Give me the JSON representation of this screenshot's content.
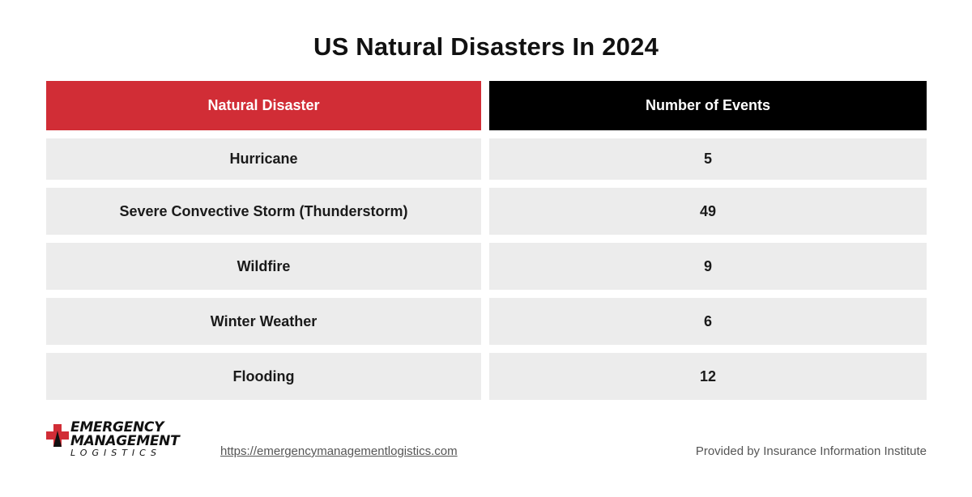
{
  "title": "US Natural Disasters In 2024",
  "chart_data": {
    "type": "table",
    "title": "US Natural Disasters In 2024",
    "columns": [
      "Natural Disaster",
      "Number of Events"
    ],
    "rows": [
      {
        "disaster": "Hurricane",
        "events": "5"
      },
      {
        "disaster": "Severe Convective Storm (Thunderstorm)",
        "events": "49"
      },
      {
        "disaster": "Wildfire",
        "events": "9"
      },
      {
        "disaster": "Winter Weather",
        "events": "6"
      },
      {
        "disaster": "Flooding",
        "events": "12"
      }
    ]
  },
  "footer": {
    "logo_line1": "EMERGENCY",
    "logo_line2": "MANAGEMENT",
    "logo_line3": "LOGISTICS",
    "url": "https://emergencymanagementlogistics.com",
    "credit": "Provided by Insurance Information Institute"
  },
  "colors": {
    "header_left": "#d12d36",
    "header_right": "#000000",
    "row_bg": "#ececec"
  },
  "icons": {
    "logo": "red-cross-icon"
  }
}
